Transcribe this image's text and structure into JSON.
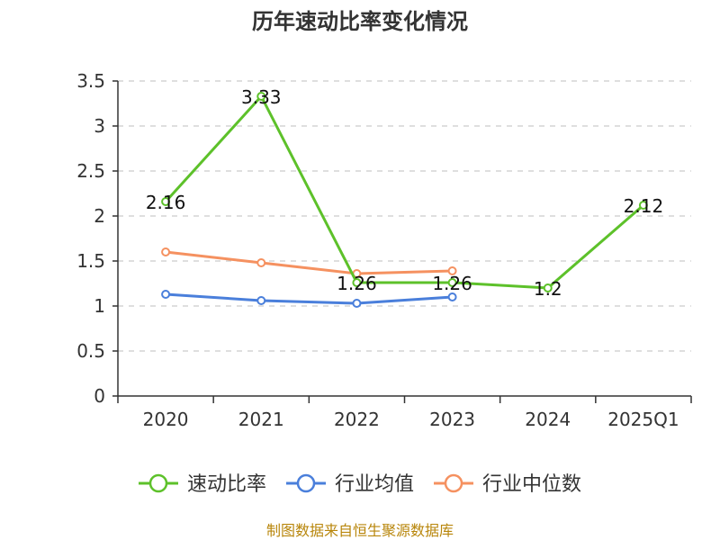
{
  "chart_data": {
    "type": "line",
    "title": "历年速动比率变化情况",
    "categories": [
      "2020",
      "2021",
      "2022",
      "2023",
      "2024",
      "2025Q1"
    ],
    "y_ticks": [
      "0",
      "0.5",
      "1",
      "1.5",
      "2",
      "2.5",
      "3",
      "3.5"
    ],
    "ylim": [
      0,
      3.5
    ],
    "grid": true,
    "legend_position": "bottom",
    "series": [
      {
        "name": "速动比率",
        "color": "#5dc12a",
        "values": [
          2.16,
          3.33,
          1.26,
          1.26,
          1.2,
          2.12
        ],
        "labels": [
          "2.16",
          "3.33",
          "1.26",
          "1.26",
          "1.2",
          "2.12"
        ],
        "show_labels": true
      },
      {
        "name": "行业均值",
        "color": "#4a7fdb",
        "values": [
          1.13,
          1.06,
          1.03,
          1.1,
          null,
          null
        ],
        "show_labels": false
      },
      {
        "name": "行业中位数",
        "color": "#f59160",
        "values": [
          1.6,
          1.48,
          1.36,
          1.39,
          null,
          null
        ],
        "show_labels": false
      }
    ]
  },
  "source": "制图数据来自恒生聚源数据库"
}
